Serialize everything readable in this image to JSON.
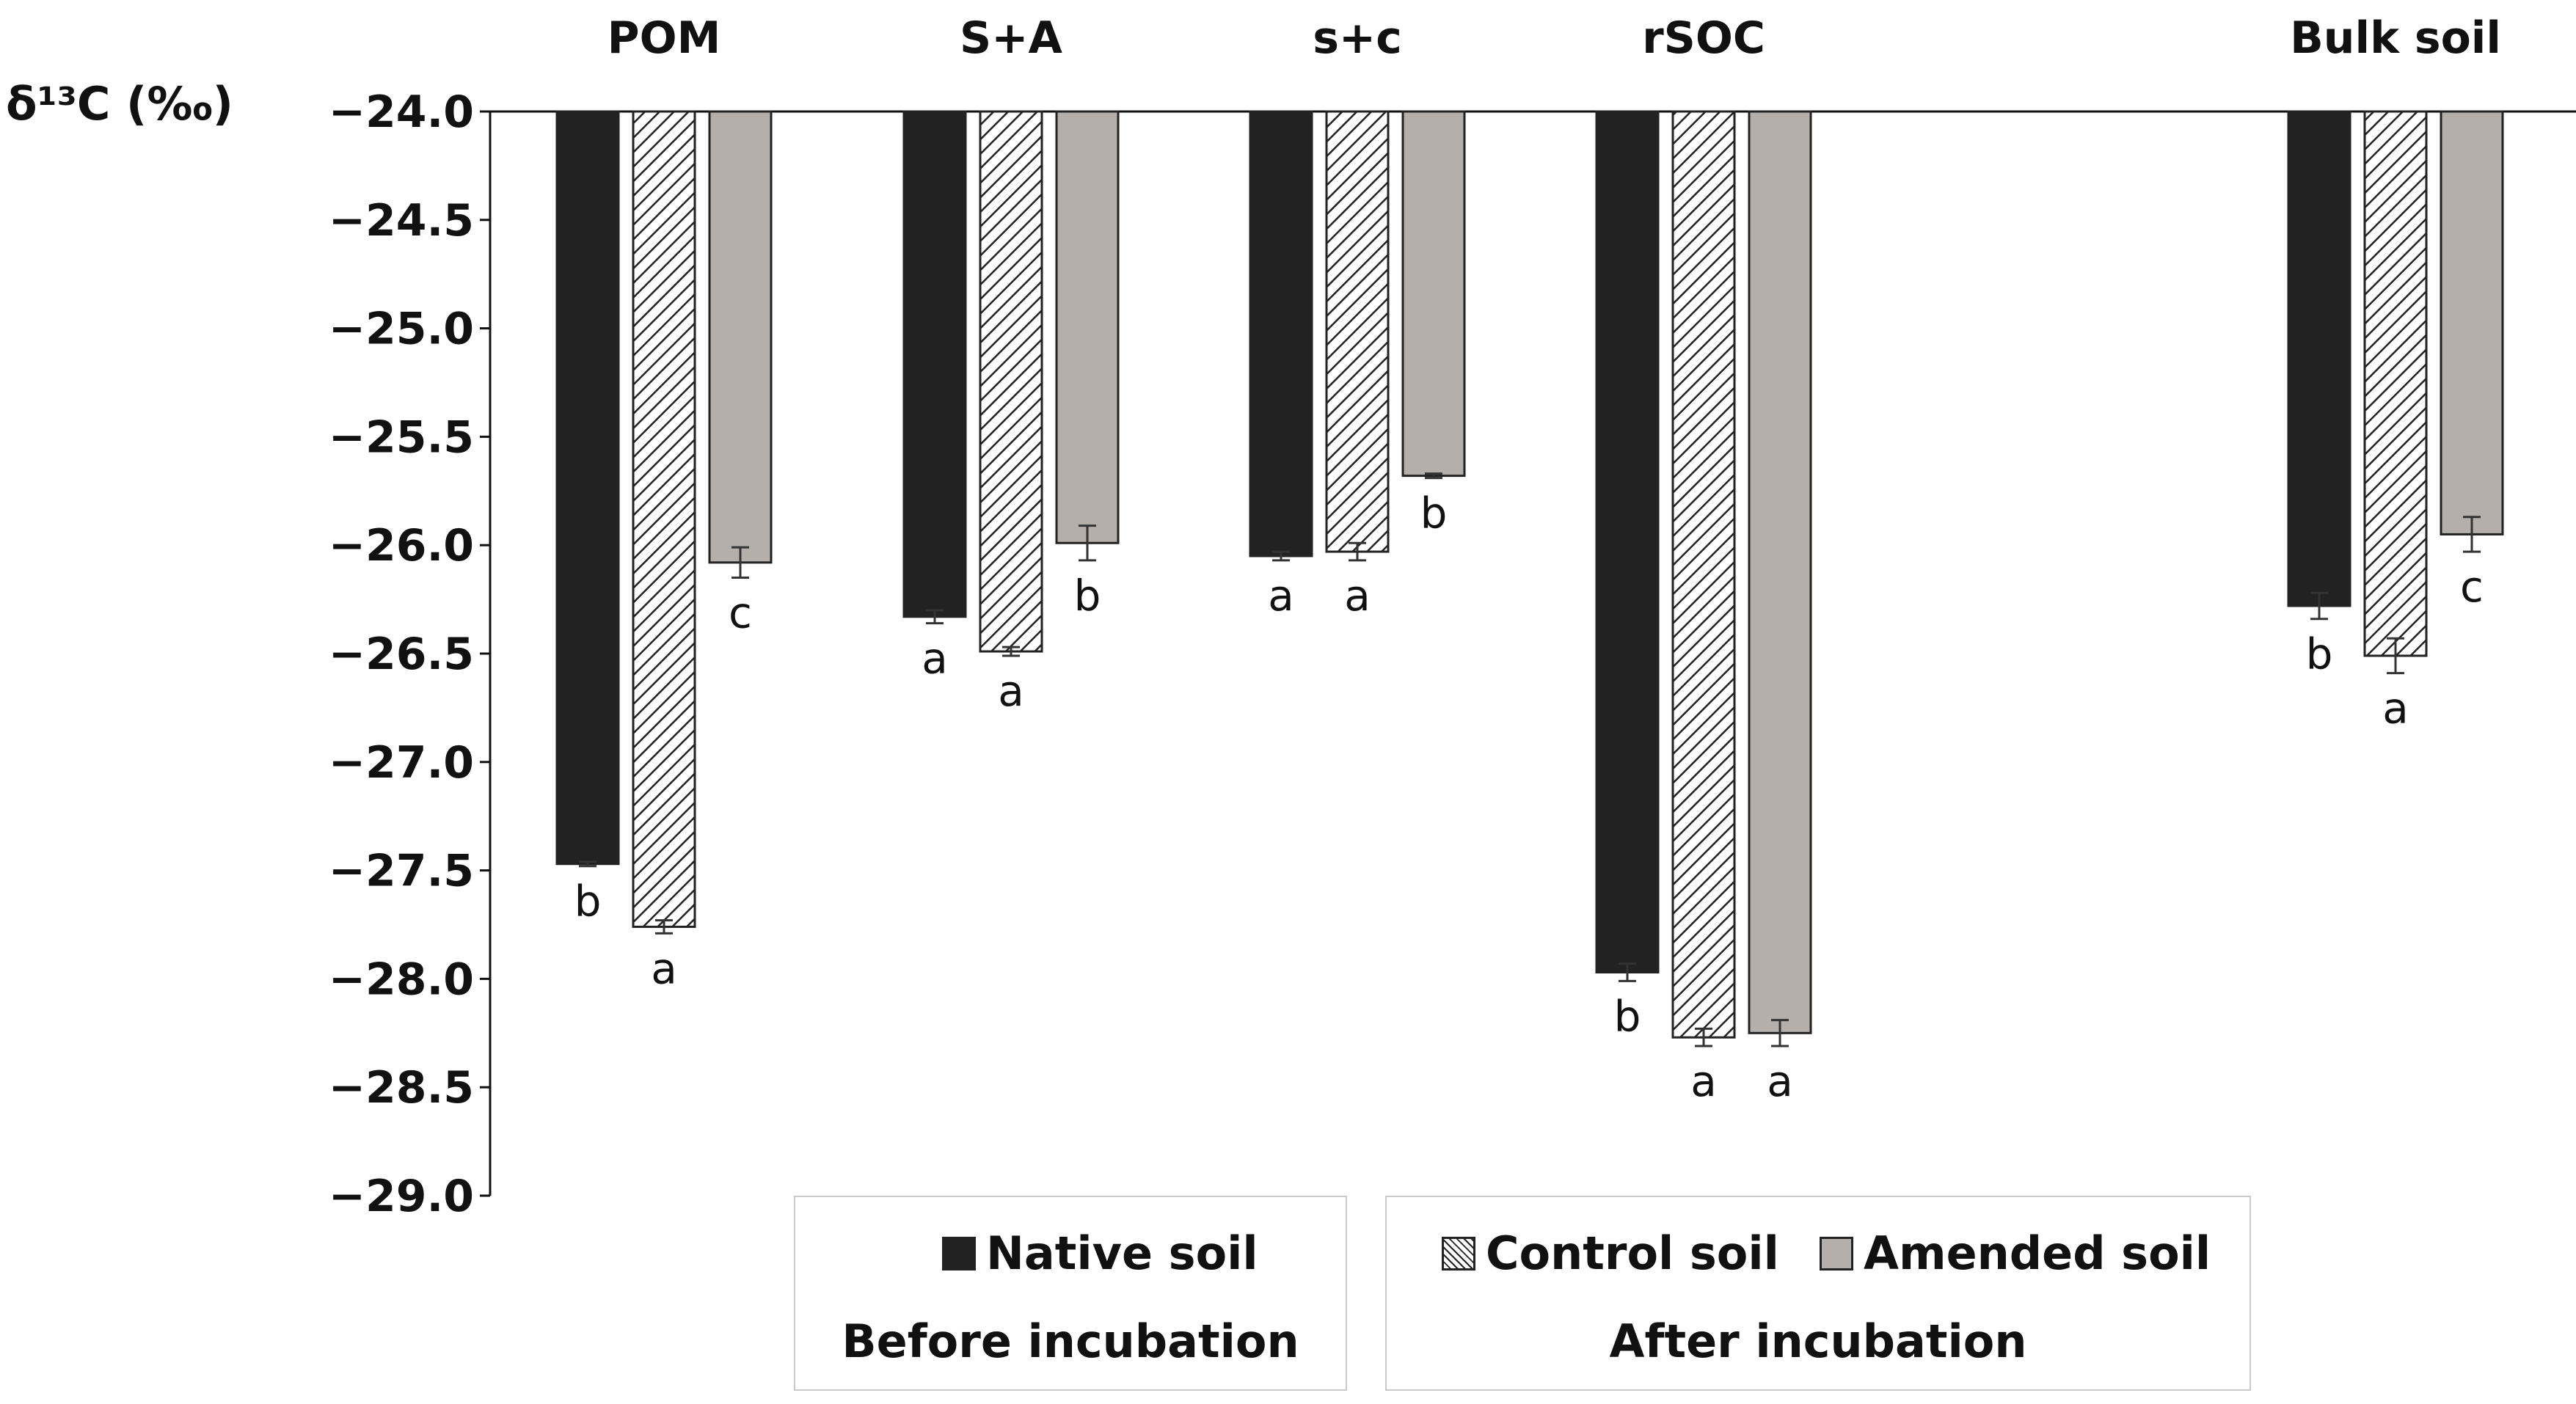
{
  "chart_data": {
    "type": "bar",
    "ylabel": "δ¹³C (‰)",
    "ylim": [
      -29.0,
      -24.0
    ],
    "yticks": [
      "−24.0",
      "−24.5",
      "−25.0",
      "−25.5",
      "−26.0",
      "−26.5",
      "−27.0",
      "−27.5",
      "−28.0",
      "−28.5",
      "−29.0"
    ],
    "categories": [
      "POM",
      "S+A",
      "s+c",
      "rSOC",
      "Bulk soil"
    ],
    "series": [
      {
        "name": "Native soil",
        "values": [
          -27.47,
          -26.33,
          -26.05,
          -27.97,
          -26.28
        ],
        "errors": [
          0.01,
          0.03,
          0.02,
          0.04,
          0.06
        ],
        "letters": [
          "b",
          "a",
          "a",
          "b",
          "b"
        ]
      },
      {
        "name": "Control soil",
        "values": [
          -27.76,
          -26.49,
          -26.03,
          -28.27,
          -26.51
        ],
        "errors": [
          0.03,
          0.02,
          0.04,
          0.04,
          0.08
        ],
        "letters": [
          "a",
          "a",
          "a",
          "a",
          "a"
        ]
      },
      {
        "name": "Amended soil",
        "values": [
          -26.08,
          -25.99,
          -25.68,
          -28.25,
          -25.95
        ],
        "errors": [
          0.07,
          0.08,
          0.01,
          0.06,
          0.08
        ],
        "letters": [
          "c",
          "b",
          "b",
          "a",
          "c"
        ]
      }
    ],
    "legend": {
      "before": {
        "entries": [
          "Native soil"
        ],
        "caption": "Before incubation"
      },
      "after": {
        "entries": [
          "Control soil",
          "Amended soil"
        ],
        "caption": "After incubation"
      }
    },
    "colors": {
      "native": "#222222",
      "control_hatch": "#222222",
      "amended": "#b4afab",
      "axis": "#111111"
    }
  }
}
